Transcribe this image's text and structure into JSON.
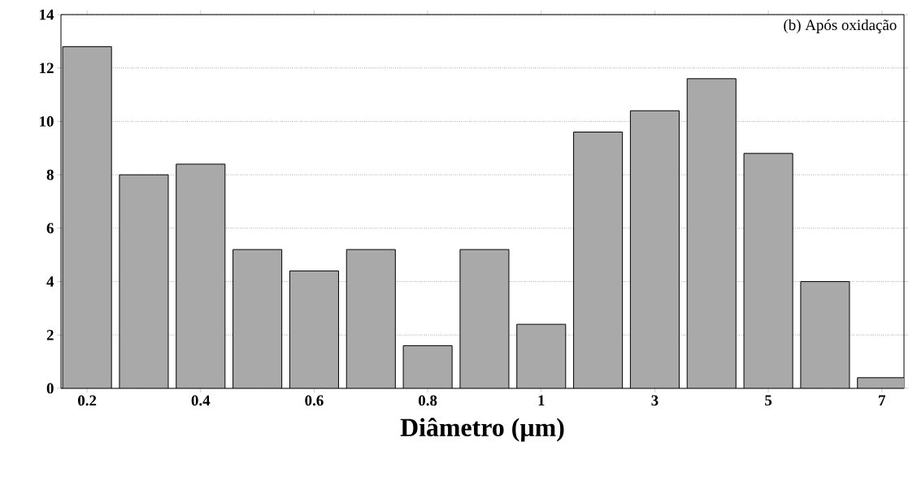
{
  "chart_data": {
    "type": "bar",
    "xlabel": "Diâmetro (µm)",
    "categories": [
      "0.2",
      null,
      "0.4",
      null,
      "0.6",
      null,
      "0.8",
      null,
      "1",
      null,
      "3",
      null,
      "5",
      null,
      "7"
    ],
    "values": [
      12.8,
      8,
      8.4,
      5.2,
      4.4,
      5.2,
      1.6,
      5.2,
      2.4,
      9.6,
      10.4,
      11.6,
      8.8,
      4.0,
      0.4
    ],
    "color": "#a9a9a9",
    "ylim": [
      0,
      14
    ],
    "yticks": [
      0,
      2,
      4,
      6,
      8,
      10,
      12,
      14
    ],
    "grid": "y",
    "annotations": [
      "(b) Após oxidação"
    ]
  }
}
